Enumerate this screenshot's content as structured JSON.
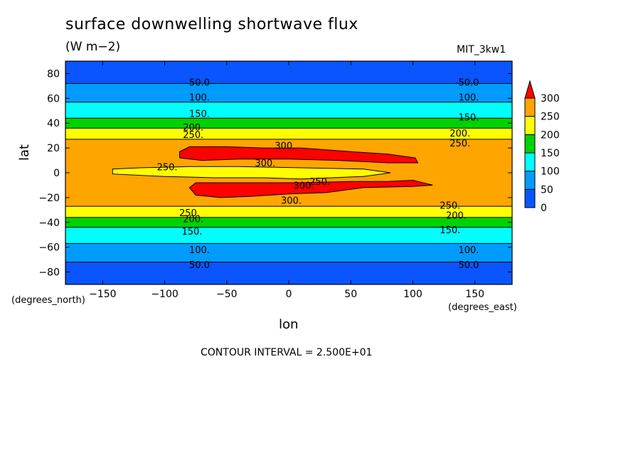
{
  "chart_data": {
    "type": "heatmap",
    "title": "surface downwelling shortwave flux",
    "units": "(W m−2)",
    "dataset_label": "MIT_3kw1",
    "xlabel": "lon",
    "ylabel": "lat",
    "x_units_label": "(degrees_east)",
    "y_units_label": "(degrees_north)",
    "contour_interval_label": "CONTOUR INTERVAL = 2.500E+01",
    "xlim": [
      -180,
      180
    ],
    "ylim": [
      -90,
      90
    ],
    "x_ticks": [
      -150,
      -100,
      -50,
      0,
      50,
      100,
      150
    ],
    "x_tick_labels": [
      "−150",
      "−100",
      "−50",
      "0",
      "50",
      "100",
      "150"
    ],
    "y_ticks": [
      80,
      60,
      40,
      20,
      0,
      -20,
      -40,
      -60,
      -80
    ],
    "y_tick_labels": [
      "80",
      "60",
      "40",
      "20",
      "0",
      "−20",
      "−40",
      "−60",
      "−80"
    ],
    "colorbar": {
      "levels": [
        0,
        50,
        100,
        150,
        200,
        250,
        300
      ],
      "level_labels": [
        "0",
        "50",
        "100",
        "150",
        "200",
        "250",
        "300"
      ],
      "colors": [
        "#0a55ff",
        "#009bff",
        "#00ffff",
        "#00d200",
        "#ffff00",
        "#ffa500",
        "#ff0000"
      ]
    },
    "zonal_bands": [
      {
        "lat_min": 72,
        "lat_max": 90,
        "value_range": [
          0,
          50
        ]
      },
      {
        "lat_min": 57,
        "lat_max": 72,
        "value_range": [
          50,
          100
        ]
      },
      {
        "lat_min": 44,
        "lat_max": 57,
        "value_range": [
          100,
          150
        ]
      },
      {
        "lat_min": 36,
        "lat_max": 44,
        "value_range": [
          150,
          200
        ]
      },
      {
        "lat_min": 27,
        "lat_max": 36,
        "value_range": [
          200,
          250
        ]
      },
      {
        "lat_min": -27,
        "lat_max": 27,
        "value_range": [
          250,
          300
        ]
      },
      {
        "lat_min": -36,
        "lat_max": -27,
        "value_range": [
          200,
          250
        ]
      },
      {
        "lat_min": -44,
        "lat_max": -36,
        "value_range": [
          150,
          200
        ]
      },
      {
        "lat_min": -57,
        "lat_max": -44,
        "value_range": [
          100,
          150
        ]
      },
      {
        "lat_min": -72,
        "lat_max": -57,
        "value_range": [
          50,
          100
        ]
      },
      {
        "lat_min": -90,
        "lat_max": -72,
        "value_range": [
          0,
          50
        ]
      }
    ],
    "regions": [
      {
        "value_range": [
          200,
          250
        ],
        "points": [
          [
            -142,
            3
          ],
          [
            -120,
            4
          ],
          [
            -80,
            5
          ],
          [
            -40,
            5
          ],
          [
            10,
            4
          ],
          [
            60,
            3
          ],
          [
            82,
            0
          ],
          [
            60,
            -3
          ],
          [
            10,
            -5
          ],
          [
            -20,
            -4
          ],
          [
            -60,
            -4
          ],
          [
            -100,
            -3
          ],
          [
            -142,
            -1
          ]
        ]
      },
      {
        "value_range": [
          300,
          350
        ],
        "points": [
          [
            -88,
            17
          ],
          [
            -80,
            21
          ],
          [
            -50,
            21
          ],
          [
            -20,
            20
          ],
          [
            10,
            20
          ],
          [
            50,
            17
          ],
          [
            80,
            15
          ],
          [
            102,
            12
          ],
          [
            104,
            8
          ],
          [
            80,
            8
          ],
          [
            40,
            10
          ],
          [
            0,
            11
          ],
          [
            -40,
            11
          ],
          [
            -70,
            10
          ],
          [
            -88,
            12
          ]
        ]
      },
      {
        "value_range": [
          300,
          350
        ],
        "points": [
          [
            -80,
            -12
          ],
          [
            -75,
            -8
          ],
          [
            -50,
            -8
          ],
          [
            -30,
            -8
          ],
          [
            10,
            -8
          ],
          [
            50,
            -7
          ],
          [
            80,
            -7
          ],
          [
            100,
            -6
          ],
          [
            116,
            -10
          ],
          [
            100,
            -11
          ],
          [
            60,
            -12
          ],
          [
            30,
            -16
          ],
          [
            0,
            -17
          ],
          [
            -30,
            -19
          ],
          [
            -55,
            -20
          ],
          [
            -75,
            -18
          ]
        ]
      }
    ],
    "contour_labels": [
      {
        "text": "50.0",
        "lon": -72,
        "lat": 73
      },
      {
        "text": "50.0",
        "lon": 145,
        "lat": 73
      },
      {
        "text": "100.",
        "lon": -72,
        "lat": 61
      },
      {
        "text": "100.",
        "lon": 145,
        "lat": 61
      },
      {
        "text": "150.",
        "lon": -72,
        "lat": 48
      },
      {
        "text": "150.",
        "lon": 145,
        "lat": 45
      },
      {
        "text": "200.",
        "lon": -77,
        "lat": 37
      },
      {
        "text": "200.",
        "lon": 138,
        "lat": 32
      },
      {
        "text": "250.",
        "lon": -77,
        "lat": 31
      },
      {
        "text": "250.",
        "lon": 138,
        "lat": 24
      },
      {
        "text": "300.",
        "lon": -3,
        "lat": 22
      },
      {
        "text": "300.",
        "lon": -19,
        "lat": 8
      },
      {
        "text": "250.",
        "lon": -98,
        "lat": 5
      },
      {
        "text": "250.",
        "lon": 25,
        "lat": -7
      },
      {
        "text": "300.",
        "lon": 12,
        "lat": -10
      },
      {
        "text": "300.",
        "lon": 2,
        "lat": -22
      },
      {
        "text": "250.",
        "lon": 130,
        "lat": -26
      },
      {
        "text": "200.",
        "lon": 135,
        "lat": -34
      },
      {
        "text": "250.",
        "lon": -80,
        "lat": -32
      },
      {
        "text": "200.",
        "lon": -77,
        "lat": -37
      },
      {
        "text": "150.",
        "lon": -78,
        "lat": -47
      },
      {
        "text": "150.",
        "lon": 130,
        "lat": -46
      },
      {
        "text": "100.",
        "lon": -72,
        "lat": -62
      },
      {
        "text": "100.",
        "lon": 145,
        "lat": -62
      },
      {
        "text": "50.0",
        "lon": -72,
        "lat": -74
      },
      {
        "text": "50.0",
        "lon": 145,
        "lat": -74
      }
    ]
  }
}
